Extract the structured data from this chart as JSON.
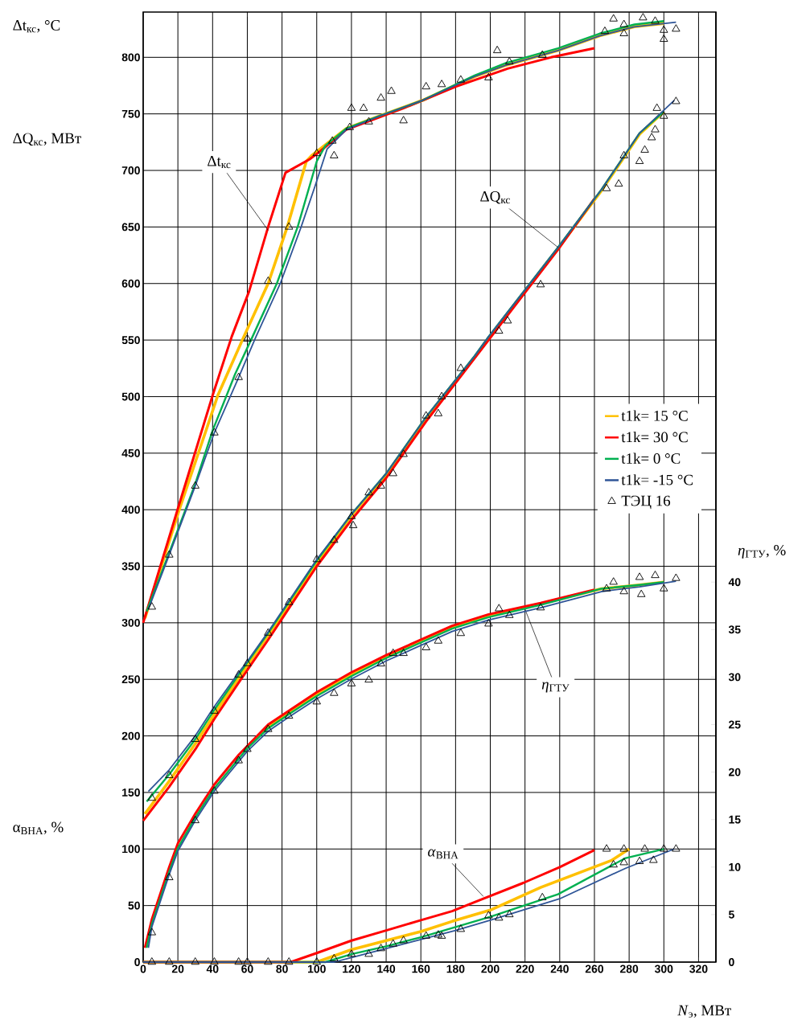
{
  "chart_data": {
    "type": "line",
    "xlabel": "*N*$_{э}$, МВт",
    "ylabel": "Δt$_{кс}$, °C",
    "y2label": "*η*$_{ГТУ}$, %",
    "annotations": [
      {
        "text": "Δt$_{кс}$",
        "x": 72,
        "y": 647
      },
      {
        "text": "ΔQ$_{кс}$",
        "x": 239,
        "y": 632
      },
      {
        "text": "*η*$_{ГТУ}$",
        "x": 220,
        "y": 312
      },
      {
        "text": "*α*$_{ВНА}$",
        "x": 196,
        "y": 58
      },
      "ΔQ$_{кс}$, МВт",
      "α$_{ВНА}$, %"
    ],
    "xlim": [
      0,
      330
    ],
    "ylim": [
      0,
      840
    ],
    "y2lim": [
      0,
      100
    ],
    "xticks": [
      0,
      20,
      40,
      60,
      80,
      100,
      120,
      140,
      160,
      180,
      200,
      220,
      240,
      260,
      280,
      300,
      320
    ],
    "yticks": [
      0,
      50,
      100,
      150,
      200,
      250,
      300,
      350,
      400,
      450,
      500,
      550,
      600,
      650,
      700,
      750,
      800
    ],
    "y2ticks": [
      0,
      5,
      10,
      15,
      20,
      25,
      30,
      35,
      40
    ],
    "grid": true,
    "legend": "right",
    "series": [
      {
        "name": "t1k= 15 °C",
        "color": "#ffc000",
        "x": [
          1,
          21,
          43,
          58,
          72,
          83,
          94,
          97,
          117,
          136,
          161,
          191,
          209,
          239,
          263,
          283,
          300
        ],
        "values": [
          304,
          401,
          501,
          553,
          600,
          650,
          708,
          713,
          737,
          748,
          762,
          783,
          793,
          806,
          819,
          827,
          830
        ]
      },
      {
        "name": "t1k= 30 °C",
        "color": "#ff0000",
        "x": [
          0,
          20,
          40,
          51,
          61,
          72,
          82,
          96,
          102,
          117,
          150,
          180,
          210,
          235,
          260
        ],
        "values": [
          300,
          401,
          501,
          553,
          593,
          650,
          698,
          710,
          717,
          736,
          755,
          774,
          790,
          800,
          808
        ]
      },
      {
        "name": "t1k= 0 °C",
        "color": "#00b050",
        "x": [
          2,
          15,
          30,
          40,
          53,
          63,
          77,
          89,
          100,
          105,
          117,
          136,
          161,
          191,
          209,
          239,
          263,
          283,
          300
        ],
        "values": [
          310,
          362,
          423,
          470,
          520,
          553,
          600,
          650,
          708,
          722,
          737,
          748,
          762,
          784,
          795,
          808,
          821,
          829,
          832
        ]
      },
      {
        "name": "t1k= -15 °C",
        "color": "#2f5597",
        "x": [
          3,
          15,
          30,
          41,
          55,
          65,
          79,
          91,
          99,
          106,
          117,
          136,
          161,
          191,
          209,
          239,
          263,
          283,
          307
        ],
        "values": [
          312,
          360,
          421,
          468,
          517,
          553,
          600,
          650,
          686,
          719,
          736,
          748,
          762,
          783,
          793,
          806,
          819,
          827,
          831
        ]
      },
      {
        "color": "#ffc000",
        "x": [
          1,
          15,
          30,
          41,
          55,
          72,
          100,
          120,
          140,
          163,
          191,
          199,
          239,
          264,
          286,
          300
        ],
        "values": [
          131,
          160,
          193,
          219,
          251,
          289,
          353,
          395,
          431,
          481,
          535,
          552,
          631,
          682,
          732,
          752
        ]
      },
      {
        "color": "#ff0000",
        "x": [
          0,
          15,
          30,
          41,
          55,
          72,
          100,
          120,
          140,
          163,
          199,
          239,
          260
        ],
        "values": [
          125,
          155,
          188,
          215,
          247,
          285,
          350,
          391,
          428,
          478,
          550,
          630,
          675
        ]
      },
      {
        "color": "#00b050",
        "x": [
          2,
          15,
          30,
          41,
          55,
          72,
          100,
          120,
          140,
          163,
          191,
          199,
          239,
          264,
          286,
          300
        ],
        "values": [
          142,
          166,
          197,
          223,
          254,
          291,
          355,
          396,
          432,
          482,
          536,
          553,
          632,
          683,
          733,
          752
        ]
      },
      {
        "color": "#2f5597",
        "x": [
          3,
          15,
          30,
          41,
          55,
          60,
          72,
          100,
          120,
          140,
          163,
          191,
          199,
          239,
          264,
          286,
          306
        ],
        "values": [
          151,
          170,
          200,
          226,
          256,
          266,
          292,
          356,
          396,
          432,
          482,
          536,
          553,
          632,
          683,
          733,
          762
        ]
      },
      {
        "color": "#ffc000",
        "axis": "y2",
        "x": [
          60,
          72,
          84,
          100,
          120,
          140,
          178,
          199,
          229,
          264,
          286,
          300
        ],
        "values": [
          22.7,
          24.8,
          26.3,
          28.2,
          30.3,
          32.2,
          35.2,
          36.4,
          37.7,
          39.3,
          39.7,
          40
        ]
      },
      {
        "color": "#ff0000",
        "axis": "y2",
        "x": [
          1,
          5,
          15,
          20,
          30,
          41,
          55,
          72,
          100,
          120,
          140,
          178,
          199,
          229,
          260
        ],
        "values": [
          1.5,
          4.5,
          10,
          12.5,
          15.6,
          18.7,
          21.8,
          25,
          28.4,
          30.5,
          32.3,
          35.4,
          36.6,
          37.8,
          39.2
        ]
      },
      {
        "color": "#00b050",
        "axis": "y2",
        "x": [
          2,
          5,
          15,
          20,
          30,
          41,
          55,
          60,
          72,
          84,
          100,
          120,
          140,
          178,
          199,
          229,
          264,
          286,
          300
        ],
        "values": [
          1.5,
          4,
          9.5,
          12,
          15.2,
          18.3,
          21.4,
          22.5,
          24.6,
          26.1,
          28,
          30.1,
          32,
          35.1,
          36.3,
          37.6,
          39.3,
          39.7,
          40
        ]
      },
      {
        "color": "#2f5597",
        "axis": "y2",
        "x": [
          3,
          5,
          15,
          20,
          30,
          41,
          55,
          60,
          72,
          84,
          100,
          120,
          140,
          178,
          199,
          229,
          264,
          286,
          307
        ],
        "values": [
          1.5,
          3.7,
          9.2,
          11.7,
          14.9,
          18,
          21.1,
          22.2,
          24.3,
          25.8,
          27.7,
          29.8,
          31.7,
          34.8,
          36,
          37.3,
          39,
          39.5,
          40.1
        ]
      },
      {
        "color": "#ffc000",
        "x": [
          0,
          100,
          120,
          140,
          160,
          178,
          200,
          229,
          270,
          280
        ],
        "values": [
          0,
          0,
          11,
          19,
          27,
          36,
          46,
          66,
          90,
          100
        ]
      },
      {
        "color": "#ff0000",
        "x": [
          0,
          85,
          100,
          120,
          140,
          160,
          178,
          191,
          219,
          240,
          260
        ],
        "values": [
          0,
          0,
          8,
          19,
          28,
          37,
          45,
          53,
          70,
          84,
          99
        ]
      },
      {
        "color": "#00b050",
        "x": [
          0,
          105,
          120,
          140,
          160,
          180,
          200,
          239,
          278,
          300
        ],
        "values": [
          0,
          0,
          7,
          14,
          22,
          31,
          40,
          60,
          92,
          100
        ]
      },
      {
        "color": "#2f5597",
        "x": [
          0,
          110,
          120,
          140,
          160,
          180,
          200,
          240,
          278,
          306
        ],
        "values": [
          0,
          0,
          4,
          12,
          20,
          28,
          37,
          56,
          83,
          100
        ]
      },
      {
        "name": "ТЭЦ 16",
        "type": "scatter",
        "marker": "triangle",
        "color": "#000000",
        "x": [
          5,
          15,
          30,
          41,
          55,
          60,
          72,
          84,
          100,
          109,
          110,
          119,
          120,
          127,
          130,
          137,
          143,
          150,
          163,
          172,
          183,
          199,
          204,
          211,
          230,
          266,
          271,
          277,
          277,
          288,
          295,
          300,
          300,
          307,
          5,
          15,
          30,
          41,
          55,
          60,
          72,
          84,
          100,
          110,
          120,
          121,
          130,
          137,
          144,
          150,
          163,
          170,
          172,
          183,
          205,
          210,
          229,
          267,
          274,
          277,
          286,
          289,
          293,
          295,
          296,
          300,
          307,
          5,
          15,
          30,
          41,
          55,
          60,
          72,
          84,
          100,
          110,
          120,
          130,
          137,
          144,
          150,
          163,
          170,
          172,
          183,
          199,
          205,
          211,
          230,
          267,
          271,
          277,
          277,
          286,
          289,
          294,
          300,
          307
        ],
        "values": [
          314,
          360,
          421,
          468,
          517,
          551,
          602,
          650,
          715,
          726,
          713,
          738,
          755,
          755,
          743,
          764,
          770,
          744,
          774,
          776,
          780,
          782,
          806,
          796,
          802,
          823,
          834,
          829,
          821,
          835,
          832,
          816,
          824,
          825,
          145,
          165,
          197,
          222,
          254,
          264,
          291,
          318,
          356,
          373,
          394,
          386,
          415,
          421,
          432,
          449,
          483,
          485,
          500,
          525,
          558,
          567,
          599,
          684,
          688,
          713,
          708,
          718,
          729,
          736,
          755,
          748,
          761,
          0,
          0,
          0,
          0,
          0,
          0,
          0,
          0,
          0,
          3,
          7,
          7,
          12,
          16,
          19,
          23,
          24,
          23,
          29,
          41,
          39,
          42,
          57,
          100,
          86,
          88,
          100,
          89,
          100,
          90,
          100,
          100
        ]
      },
      {
        "type": "scatter",
        "marker": "triangle",
        "color": "#000000",
        "axis": "y2",
        "x": [
          5,
          15,
          30,
          41,
          55,
          60,
          72,
          84,
          100,
          110,
          120,
          130,
          137,
          144,
          150,
          163,
          170,
          183,
          199,
          205,
          211,
          229,
          267,
          271,
          277,
          286,
          287,
          295,
          300,
          307
        ],
        "values": [
          3.1,
          8.9,
          14.9,
          18,
          21.2,
          22.4,
          24.5,
          25.9,
          27.4,
          28.3,
          29.3,
          29.7,
          31.4,
          32.5,
          32.5,
          33.1,
          33.8,
          34.6,
          35.6,
          37.2,
          36.5,
          37.3,
          39.3,
          40,
          39,
          40.5,
          38.7,
          40.7,
          39.3,
          40.4
        ]
      }
    ]
  }
}
